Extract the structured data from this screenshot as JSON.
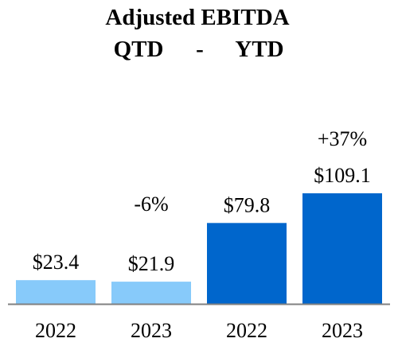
{
  "chart_data": {
    "type": "bar",
    "title": "Adjusted EBITDA",
    "subtitle_left": "QTD",
    "subtitle_sep": "-",
    "subtitle_right": "YTD",
    "categories": [
      "2022",
      "2023",
      "2022",
      "2023"
    ],
    "values": [
      23.4,
      21.9,
      79.8,
      109.1
    ],
    "value_labels": [
      "$23.4",
      "$21.9",
      "$79.8",
      "$109.1"
    ],
    "groups": [
      "QTD",
      "QTD",
      "YTD",
      "YTD"
    ],
    "changes": [
      {
        "label": "-6%",
        "bar_index": 1
      },
      {
        "label": "+37%",
        "bar_index": 3
      }
    ],
    "colors": {
      "QTD": "#87CAFA",
      "YTD": "#0066CC",
      "axis": "#808080"
    },
    "ylim": [
      0,
      120
    ],
    "grid": false,
    "xlabel": "",
    "ylabel": ""
  }
}
